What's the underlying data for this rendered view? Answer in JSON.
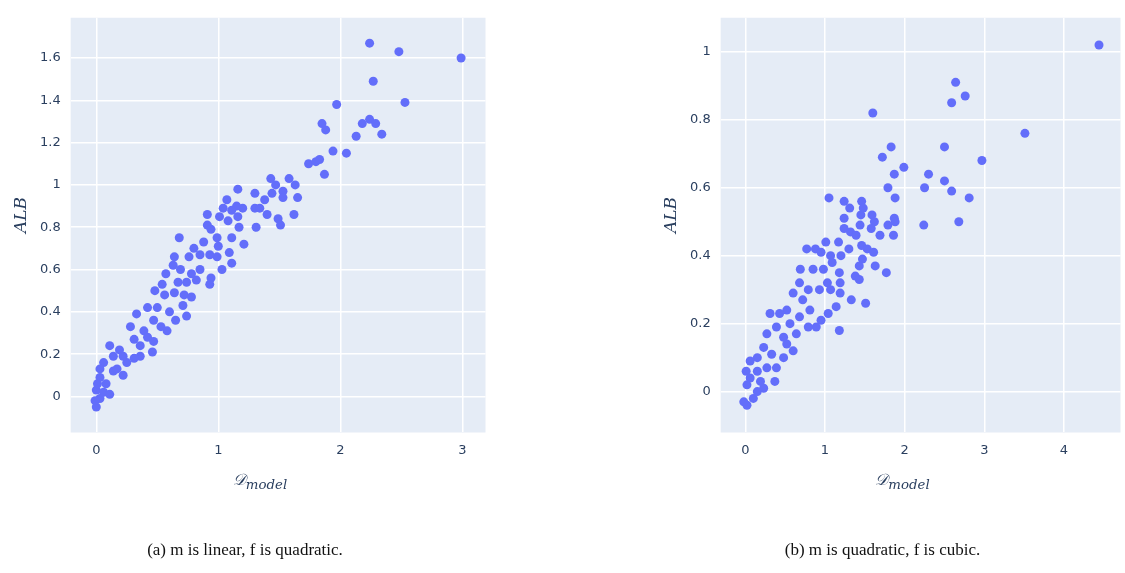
{
  "chart_data": [
    {
      "type": "scatter",
      "xlabel": "𝒟$_{model}$",
      "ylabel": "ALB",
      "annotations": [
        "(a) m is linear, f is quadratic."
      ],
      "color": "#636efa",
      "marker": "circle",
      "grid": true,
      "xlim": [
        -0.21,
        3.19
      ],
      "ylim": [
        -0.17,
        1.79
      ],
      "xticks": [
        0,
        1,
        2,
        3
      ],
      "yticks": [
        0,
        0.2,
        0.4,
        0.6,
        0.8,
        1,
        1.2,
        1.4,
        1.6
      ],
      "x": [
        2.24,
        2.48,
        2.99,
        2.27,
        1.97,
        2.53,
        1.85,
        1.88,
        2.18,
        2.24,
        2.29,
        2.13,
        2.34,
        1.94,
        2.05,
        1.74,
        1.8,
        1.83,
        1.87,
        1.43,
        1.47,
        1.58,
        1.63,
        1.53,
        1.65,
        1.53,
        1.44,
        1.38,
        1.3,
        1.16,
        1.62,
        1.3,
        1.34,
        1.4,
        1.49,
        1.51,
        1.31,
        1.2,
        1.15,
        1.07,
        1.04,
        1.11,
        1.16,
        0.91,
        1.01,
        1.08,
        1.17,
        1.11,
        1.21,
        0.91,
        0.94,
        0.99,
        0.68,
        0.88,
        0.8,
        1.0,
        1.09,
        1.11,
        1.03,
        0.99,
        0.93,
        0.85,
        0.76,
        0.64,
        0.63,
        0.57,
        0.69,
        0.78,
        0.85,
        0.94,
        0.93,
        0.82,
        0.74,
        0.67,
        0.54,
        0.48,
        0.56,
        0.64,
        0.72,
        0.78,
        0.71,
        0.74,
        0.65,
        0.6,
        0.5,
        0.42,
        0.33,
        0.53,
        0.47,
        0.46,
        0.36,
        0.39,
        0.28,
        0.31,
        0.19,
        0.25,
        0.11,
        0.06,
        0.14,
        0.03,
        0.08,
        0,
        0.03,
        0,
        -0.01,
        0.06,
        0.17,
        0.22,
        0.31,
        0.42,
        0.36,
        0.47,
        0.58,
        0.03,
        0.01,
        0.11,
        0.22,
        0.14
      ],
      "values": [
        1.67,
        1.63,
        1.6,
        1.49,
        1.38,
        1.39,
        1.29,
        1.26,
        1.29,
        1.31,
        1.29,
        1.23,
        1.24,
        1.16,
        1.15,
        1.1,
        1.11,
        1.12,
        1.05,
        1.03,
        1.0,
        1.03,
        1.0,
        0.97,
        0.94,
        0.94,
        0.96,
        0.93,
        0.96,
        0.98,
        0.86,
        0.89,
        0.89,
        0.86,
        0.84,
        0.81,
        0.8,
        0.89,
        0.9,
        0.93,
        0.89,
        0.88,
        0.85,
        0.86,
        0.85,
        0.83,
        0.8,
        0.75,
        0.72,
        0.81,
        0.79,
        0.75,
        0.75,
        0.73,
        0.7,
        0.71,
        0.68,
        0.63,
        0.6,
        0.66,
        0.67,
        0.67,
        0.66,
        0.66,
        0.62,
        0.58,
        0.6,
        0.58,
        0.6,
        0.56,
        0.53,
        0.55,
        0.54,
        0.54,
        0.53,
        0.5,
        0.48,
        0.49,
        0.48,
        0.47,
        0.43,
        0.38,
        0.36,
        0.4,
        0.42,
        0.42,
        0.39,
        0.33,
        0.26,
        0.21,
        0.19,
        0.31,
        0.33,
        0.27,
        0.22,
        0.16,
        0.24,
        0.16,
        0.12,
        0.09,
        0.06,
        0.03,
        -0.01,
        -0.05,
        -0.02,
        0.02,
        0.13,
        0.1,
        0.18,
        0.28,
        0.24,
        0.36,
        0.31,
        0.13,
        0.06,
        0.01,
        0.19,
        0.19
      ]
    },
    {
      "type": "scatter",
      "xlabel": "𝒟$_{model}$",
      "ylabel": "ALB",
      "annotations": [
        "(b) m is quadratic, f is cubic."
      ],
      "color": "#636efa",
      "marker": "circle",
      "grid": true,
      "xlim": [
        -0.31,
        4.71
      ],
      "ylim": [
        -0.12,
        1.1
      ],
      "xticks": [
        0,
        1,
        2,
        3,
        4
      ],
      "yticks": [
        0,
        0.2,
        0.4,
        0.6,
        0.8,
        1
      ],
      "x": [
        4.44,
        2.64,
        2.76,
        2.59,
        1.6,
        3.51,
        1.83,
        2.5,
        1.72,
        2.97,
        1.99,
        1.87,
        2.3,
        1.79,
        2.25,
        2.5,
        2.59,
        2.81,
        1.88,
        2.68,
        2.24,
        1.05,
        1.24,
        1.46,
        1.31,
        1.48,
        1.45,
        1.59,
        1.24,
        1.62,
        1.87,
        1.88,
        1.44,
        1.58,
        1.79,
        1.86,
        1.69,
        1.24,
        1.32,
        1.39,
        1.17,
        1.3,
        1.46,
        1.53,
        1.61,
        1.01,
        0.77,
        0.88,
        0.95,
        1.07,
        1.2,
        1.09,
        1.47,
        1.43,
        1.63,
        1.77,
        0.69,
        0.85,
        0.98,
        1.18,
        1.38,
        1.43,
        1.03,
        1.19,
        0.68,
        0.79,
        0.93,
        1.07,
        1.19,
        1.33,
        1.51,
        1.14,
        1.04,
        0.95,
        1.18,
        0.6,
        0.72,
        0.81,
        0.68,
        0.89,
        0.79,
        0.52,
        0.43,
        0.31,
        0.56,
        0.64,
        0.39,
        0.27,
        0.52,
        0.6,
        0.48,
        0.39,
        0.37,
        0.23,
        0.15,
        0.06,
        0.27,
        0.23,
        0.1,
        0.02,
        -0.02,
        0.02,
        0.01,
        0.06,
        0.15,
        0.19,
        0.33,
        0.48,
        0.15
      ],
      "values": [
        1.02,
        0.91,
        0.87,
        0.85,
        0.82,
        0.76,
        0.72,
        0.72,
        0.69,
        0.68,
        0.66,
        0.64,
        0.64,
        0.6,
        0.6,
        0.62,
        0.59,
        0.57,
        0.57,
        0.5,
        0.49,
        0.57,
        0.56,
        0.56,
        0.54,
        0.54,
        0.52,
        0.52,
        0.51,
        0.5,
        0.51,
        0.5,
        0.49,
        0.48,
        0.49,
        0.46,
        0.46,
        0.48,
        0.47,
        0.46,
        0.44,
        0.42,
        0.43,
        0.42,
        0.41,
        0.44,
        0.42,
        0.42,
        0.41,
        0.4,
        0.4,
        0.38,
        0.39,
        0.37,
        0.37,
        0.35,
        0.36,
        0.36,
        0.36,
        0.35,
        0.34,
        0.33,
        0.32,
        0.32,
        0.32,
        0.3,
        0.3,
        0.3,
        0.29,
        0.27,
        0.26,
        0.25,
        0.23,
        0.21,
        0.18,
        0.29,
        0.27,
        0.24,
        0.22,
        0.19,
        0.19,
        0.24,
        0.23,
        0.23,
        0.2,
        0.17,
        0.19,
        0.17,
        0.14,
        0.12,
        0.1,
        0.07,
        0.03,
        0.13,
        0.1,
        0.09,
        0.07,
        0.01,
        -0.02,
        -0.04,
        -0.03,
        0.02,
        0.06,
        0.04,
        0.06,
        0.03,
        0.11,
        0.16,
        0.0
      ]
    }
  ]
}
